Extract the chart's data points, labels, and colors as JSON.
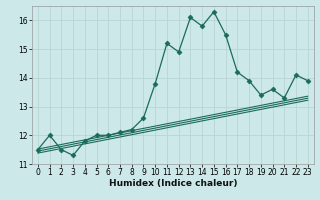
{
  "xlabel": "Humidex (Indice chaleur)",
  "background_color": "#cce8e8",
  "grid_color": "#b8d4d4",
  "line_color": "#1a6b5a",
  "x_data": [
    0,
    1,
    2,
    3,
    4,
    5,
    6,
    7,
    8,
    9,
    10,
    11,
    12,
    13,
    14,
    15,
    16,
    17,
    18,
    19,
    20,
    21,
    22,
    23
  ],
  "y_main": [
    11.5,
    12.0,
    11.5,
    11.3,
    11.8,
    12.0,
    12.0,
    12.1,
    12.2,
    12.6,
    13.8,
    15.2,
    14.9,
    16.1,
    15.8,
    16.3,
    15.5,
    14.2,
    13.9,
    13.4,
    13.6,
    13.3,
    14.1,
    13.9
  ],
  "y_trend1": [
    11.52,
    11.6,
    11.68,
    11.76,
    11.84,
    11.92,
    12.0,
    12.08,
    12.16,
    12.24,
    12.32,
    12.4,
    12.48,
    12.56,
    12.64,
    12.72,
    12.8,
    12.88,
    12.96,
    13.04,
    13.12,
    13.2,
    13.28,
    13.36
  ],
  "y_trend2": [
    11.45,
    11.53,
    11.61,
    11.69,
    11.77,
    11.85,
    11.93,
    12.01,
    12.09,
    12.17,
    12.25,
    12.33,
    12.41,
    12.49,
    12.57,
    12.65,
    12.73,
    12.81,
    12.89,
    12.97,
    13.05,
    13.13,
    13.21,
    13.29
  ],
  "y_trend3": [
    11.38,
    11.46,
    11.54,
    11.62,
    11.7,
    11.78,
    11.86,
    11.94,
    12.02,
    12.1,
    12.18,
    12.26,
    12.34,
    12.42,
    12.5,
    12.58,
    12.66,
    12.74,
    12.82,
    12.9,
    12.98,
    13.06,
    13.14,
    13.22
  ],
  "ylim": [
    11.0,
    16.5
  ],
  "xlim": [
    -0.5,
    23.5
  ],
  "yticks": [
    11,
    12,
    13,
    14,
    15,
    16
  ],
  "xticks": [
    0,
    1,
    2,
    3,
    4,
    5,
    6,
    7,
    8,
    9,
    10,
    11,
    12,
    13,
    14,
    15,
    16,
    17,
    18,
    19,
    20,
    21,
    22,
    23
  ],
  "marker": "D",
  "marker_size": 2.5,
  "linewidth": 0.9,
  "trend_linewidth": 0.8
}
